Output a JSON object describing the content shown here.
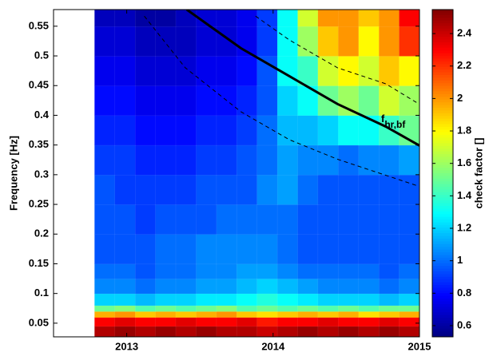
{
  "chart_data": {
    "type": "heatmap",
    "colormap": "jet",
    "x_edges": [
      2012.78,
      2012.919,
      2013.058,
      2013.196,
      2013.335,
      2013.474,
      2013.613,
      2013.751,
      2013.89,
      2014.029,
      2014.168,
      2014.306,
      2014.445,
      2014.584,
      2014.723,
      2014.861,
      2015.0
    ],
    "y_edges": [
      0.027,
      0.045,
      0.06,
      0.07,
      0.08,
      0.1,
      0.125,
      0.15,
      0.2,
      0.25,
      0.3,
      0.35,
      0.4,
      0.45,
      0.5,
      0.55,
      0.578
    ],
    "values": [
      [
        2.45,
        2.5,
        2.45,
        2.5,
        2.45,
        2.5,
        2.45,
        2.45,
        2.4,
        2.45,
        2.5,
        2.45,
        2.5,
        2.45,
        2.5,
        2.45
      ],
      [
        2.3,
        2.35,
        2.3,
        2.3,
        2.35,
        2.3,
        2.3,
        2.35,
        2.25,
        2.3,
        2.3,
        2.35,
        2.3,
        2.3,
        2.35,
        2.3
      ],
      [
        1.95,
        2.0,
        1.9,
        1.95,
        1.9,
        1.95,
        2.0,
        1.9,
        1.85,
        1.9,
        1.95,
        1.9,
        1.95,
        1.85,
        1.9,
        1.95
      ],
      [
        1.5,
        1.55,
        1.45,
        1.5,
        1.45,
        1.5,
        1.55,
        1.45,
        1.5,
        1.45,
        1.5,
        1.45,
        1.5,
        1.45,
        1.5,
        1.5
      ],
      [
        1.2,
        1.2,
        1.15,
        1.2,
        1.2,
        1.25,
        1.25,
        1.3,
        1.35,
        1.3,
        1.25,
        1.2,
        1.2,
        1.2,
        1.15,
        1.2
      ],
      [
        1.05,
        1.05,
        1.0,
        1.05,
        1.05,
        1.1,
        1.1,
        1.15,
        1.2,
        1.15,
        1.1,
        1.05,
        1.05,
        1.05,
        1.0,
        1.05
      ],
      [
        1.0,
        1.0,
        0.95,
        1.0,
        1.0,
        1.05,
        1.05,
        1.1,
        1.1,
        1.05,
        1.0,
        1.0,
        1.0,
        1.0,
        0.95,
        1.0
      ],
      [
        0.95,
        0.95,
        0.95,
        1.0,
        1.0,
        1.05,
        1.05,
        1.05,
        1.05,
        1.0,
        0.95,
        0.95,
        0.95,
        0.95,
        0.95,
        0.95
      ],
      [
        0.95,
        0.95,
        0.9,
        0.95,
        0.95,
        0.95,
        1.0,
        1.0,
        1.0,
        1.0,
        0.95,
        0.95,
        0.95,
        0.95,
        0.95,
        0.95
      ],
      [
        0.95,
        0.9,
        0.9,
        0.9,
        0.9,
        0.95,
        0.95,
        0.95,
        1.05,
        1.1,
        1.0,
        0.95,
        0.95,
        0.95,
        0.95,
        0.95
      ],
      [
        0.9,
        0.9,
        0.85,
        0.85,
        0.85,
        0.9,
        0.9,
        0.95,
        1.0,
        1.1,
        1.05,
        1.05,
        1.0,
        1.05,
        1.05,
        1.1
      ],
      [
        0.85,
        0.85,
        0.8,
        0.8,
        0.8,
        0.85,
        0.85,
        0.9,
        1.0,
        1.15,
        1.15,
        1.2,
        1.3,
        1.3,
        1.4,
        1.5
      ],
      [
        0.8,
        0.8,
        0.75,
        0.75,
        0.75,
        0.8,
        0.8,
        0.85,
        0.95,
        1.2,
        1.3,
        1.5,
        1.6,
        1.5,
        1.7,
        1.6
      ],
      [
        0.75,
        0.75,
        0.7,
        0.7,
        0.7,
        0.75,
        0.75,
        0.8,
        0.95,
        1.3,
        1.4,
        1.7,
        1.8,
        1.7,
        1.9,
        1.8
      ],
      [
        0.7,
        0.7,
        0.65,
        0.65,
        0.65,
        0.7,
        0.7,
        0.75,
        0.9,
        1.3,
        1.6,
        1.9,
        2.0,
        1.8,
        2.0,
        2.2
      ],
      [
        0.65,
        0.65,
        0.6,
        0.6,
        0.65,
        0.7,
        0.7,
        0.75,
        0.9,
        1.3,
        1.7,
        2.0,
        2.0,
        1.9,
        2.0,
        2.3
      ]
    ],
    "lines": [
      {
        "linestyle": "solid",
        "color": "#000000",
        "x": [
          2013.41,
          2013.78,
          2014.11,
          2014.44,
          2014.77,
          2015.0
        ],
        "y": [
          0.578,
          0.513,
          0.466,
          0.419,
          0.381,
          0.349
        ]
      },
      {
        "linestyle": "dashed",
        "color": "#000000",
        "x": [
          2013.12,
          2013.4,
          2013.78,
          2014.11,
          2014.44,
          2014.99
        ],
        "y": [
          0.567,
          0.48,
          0.406,
          0.359,
          0.326,
          0.281
        ]
      },
      {
        "linestyle": "dashed",
        "color": "#000000",
        "x": [
          2013.88,
          2014.11,
          2014.44,
          2014.77,
          2014.99
        ],
        "y": [
          0.567,
          0.527,
          0.48,
          0.453,
          0.42
        ]
      }
    ],
    "annotation": {
      "text": "f",
      "subscript": "hr,bf"
    },
    "y_label": "Frequency [Hz]",
    "xlim": [
      2012.5,
      2015.0
    ],
    "xticks": [
      2013,
      2014,
      2015
    ],
    "ylim": [
      0.027,
      0.578
    ],
    "yticks": [
      0.05,
      0.1,
      0.15,
      0.2,
      0.25,
      0.3,
      0.35,
      0.4,
      0.45,
      0.5,
      0.55
    ],
    "colorbar_label": "check factor []",
    "clim": [
      0.531,
      2.548
    ],
    "cticks": [
      0.6,
      0.8,
      1,
      1.2,
      1.4,
      1.6,
      1.8,
      2,
      2.2,
      2.4
    ]
  }
}
